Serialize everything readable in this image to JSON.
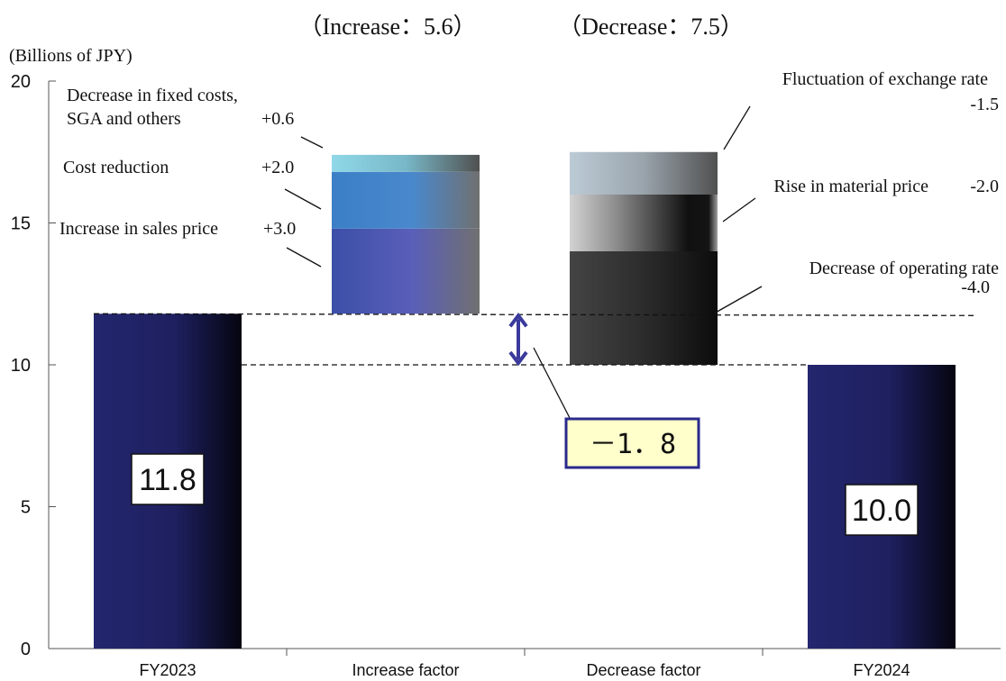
{
  "chart_data": {
    "type": "bar",
    "subtype": "waterfall",
    "unit_label": "(Billions of JPY)",
    "ylim": [
      0,
      20
    ],
    "yticks": [
      0,
      5,
      10,
      15,
      20
    ],
    "grid": false,
    "categories": [
      "FY2023",
      "Increase factor",
      "Decrease factor",
      "FY2024"
    ],
    "totals": [
      {
        "category": "FY2023",
        "value": 11.8,
        "label": "11.8"
      },
      {
        "category": "FY2024",
        "value": 10.0,
        "label": "10.0"
      }
    ],
    "increase_factor": {
      "header": "（Increase：5.6）",
      "base": 11.8,
      "components": [
        {
          "name": "Increase in sales price",
          "value": 3.0,
          "value_label": "+3.0",
          "color": "#3f51b5"
        },
        {
          "name": "Cost reduction",
          "value": 2.0,
          "value_label": "+2.0",
          "color": "#3a82c8"
        },
        {
          "name": "Decrease in fixed costs,\nSGA and others",
          "value": 0.6,
          "value_label": "+0.6",
          "color": "#7ecfe0"
        }
      ]
    },
    "decrease_factor": {
      "header": "（Decrease：7.5）",
      "base": 10.0,
      "components": [
        {
          "name": "Decrease of operating rate",
          "value": -4.0,
          "value_label": "-4.0",
          "color": "#3a3a3a"
        },
        {
          "name": "Rise in material price",
          "value": -2.0,
          "value_label": "-2.0",
          "color": "#c8c8c8"
        },
        {
          "name": "Fluctuation of exchange rate",
          "value": -1.5,
          "value_label": "-1.5",
          "color": "#b7c7d3"
        }
      ]
    },
    "difference": {
      "value": -1.8,
      "label": "－1．8"
    },
    "colors": {
      "total_bar": "#23246a",
      "arrow": "#3a3a9c",
      "box_fill": "#ffffcc",
      "box_border": "#2a2a8c"
    }
  }
}
